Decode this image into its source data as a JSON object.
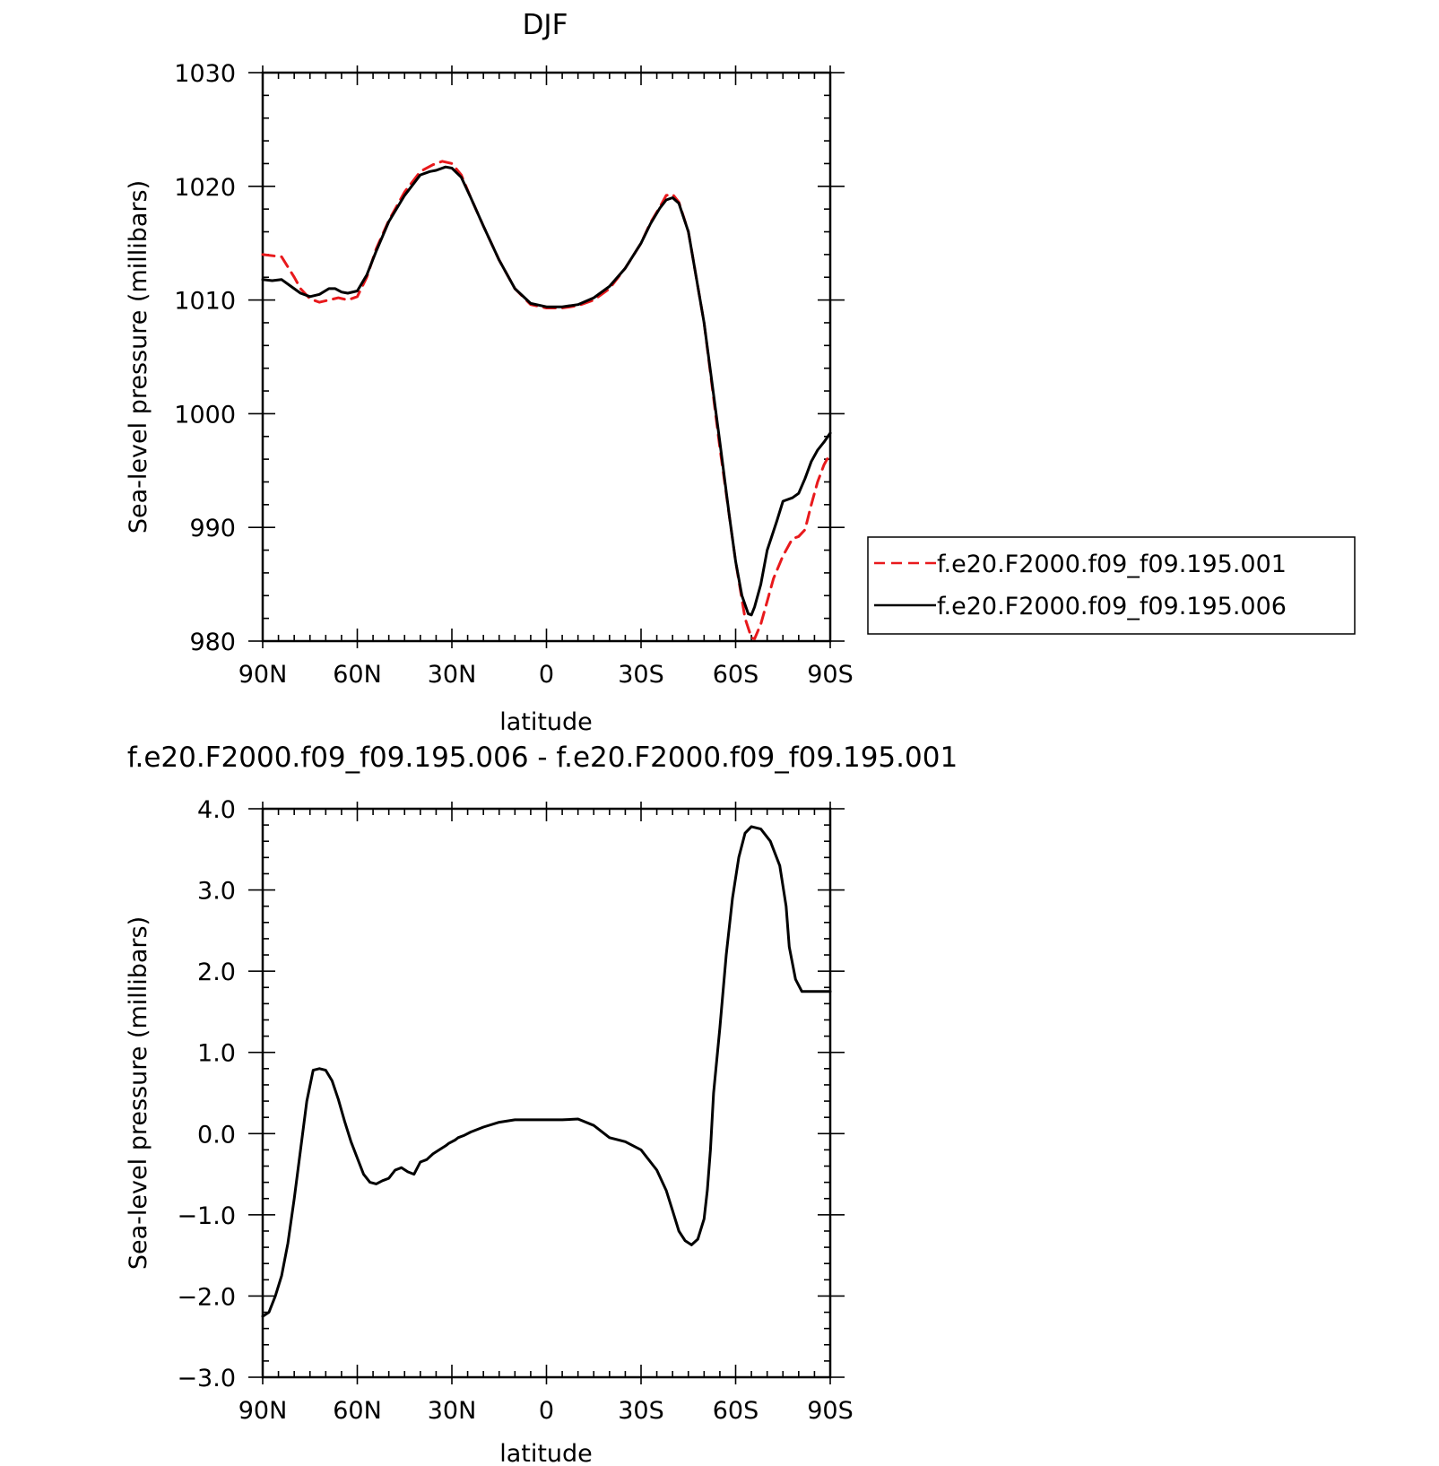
{
  "chart_data": [
    {
      "type": "line",
      "title": "DJF",
      "xlabel": "latitude",
      "ylabel": "Sea-level pressure (millibars)",
      "xlim": [
        90,
        -90
      ],
      "ylim": [
        980,
        1030
      ],
      "x_ticks": [
        {
          "value": 90,
          "label": "90N"
        },
        {
          "value": 60,
          "label": "60N"
        },
        {
          "value": 30,
          "label": "30N"
        },
        {
          "value": 0,
          "label": "0"
        },
        {
          "value": -30,
          "label": "30S"
        },
        {
          "value": -60,
          "label": "60S"
        },
        {
          "value": -90,
          "label": "90S"
        }
      ],
      "y_ticks": [
        {
          "value": 980,
          "label": "980"
        },
        {
          "value": 990,
          "label": "990"
        },
        {
          "value": 1000,
          "label": "1000"
        },
        {
          "value": 1010,
          "label": "1010"
        },
        {
          "value": 1020,
          "label": "1020"
        },
        {
          "value": 1030,
          "label": "1030"
        }
      ],
      "legend_position": "right",
      "series": [
        {
          "name": "f.e20.F2000.f09_f09.195.001",
          "color": "#e8191c",
          "dash": "dashed",
          "x": [
            90,
            84,
            80,
            78,
            75,
            72,
            69,
            66,
            63,
            60,
            57,
            54,
            50,
            45,
            40,
            36,
            33,
            30,
            27,
            24,
            20,
            15,
            10,
            5,
            0,
            -5,
            -10,
            -15,
            -20,
            -25,
            -30,
            -33,
            -36,
            -38,
            -40,
            -42,
            -45,
            -50,
            -55,
            -60,
            -63,
            -65,
            -66,
            -68,
            -70,
            -72,
            -75,
            -78,
            -80,
            -82,
            -84,
            -86,
            -88,
            -90
          ],
          "values": [
            1014.0,
            1013.8,
            1012.0,
            1011.0,
            1010.1,
            1009.8,
            1010.0,
            1010.2,
            1010.0,
            1010.3,
            1012.0,
            1014.5,
            1017.0,
            1019.5,
            1021.3,
            1021.9,
            1022.2,
            1022.0,
            1021.0,
            1019.0,
            1016.5,
            1013.5,
            1011.0,
            1009.6,
            1009.3,
            1009.3,
            1009.5,
            1010.0,
            1011.0,
            1012.8,
            1015.0,
            1016.8,
            1018.2,
            1019.2,
            1019.3,
            1018.6,
            1016.0,
            1008.0,
            997.0,
            987.0,
            982.0,
            980.3,
            980.2,
            981.5,
            983.5,
            985.5,
            987.5,
            989.0,
            989.2,
            989.8,
            992.0,
            994.0,
            995.5,
            996.5
          ]
        },
        {
          "name": "f.e20.F2000.f09_f09.195.006",
          "color": "#000000",
          "dash": "solid",
          "x": [
            90,
            87,
            84,
            81,
            78,
            75,
            72,
            69,
            67,
            65,
            63,
            60,
            57,
            54,
            50,
            45,
            40,
            37,
            35,
            32,
            30,
            27,
            24,
            20,
            15,
            10,
            5,
            0,
            -5,
            -10,
            -15,
            -20,
            -25,
            -30,
            -33,
            -36,
            -38,
            -40,
            -42,
            -45,
            -50,
            -55,
            -58,
            -60,
            -62,
            -64,
            -65,
            -66,
            -68,
            -70,
            -73,
            -75,
            -78,
            -80,
            -82,
            -84,
            -86,
            -88,
            -90
          ],
          "values": [
            1011.8,
            1011.7,
            1011.8,
            1011.2,
            1010.6,
            1010.3,
            1010.5,
            1011.0,
            1011.0,
            1010.7,
            1010.6,
            1010.8,
            1012.2,
            1014.3,
            1016.9,
            1019.2,
            1021.0,
            1021.3,
            1021.4,
            1021.7,
            1021.6,
            1020.8,
            1019.0,
            1016.5,
            1013.5,
            1011.0,
            1009.7,
            1009.4,
            1009.4,
            1009.6,
            1010.2,
            1011.2,
            1012.8,
            1015.0,
            1016.7,
            1018.1,
            1018.8,
            1019.0,
            1018.5,
            1016.0,
            1008.0,
            997.5,
            991.0,
            987.0,
            984.0,
            982.4,
            982.3,
            983.0,
            985.0,
            988.0,
            990.5,
            992.3,
            992.6,
            993.0,
            994.3,
            995.8,
            996.8,
            997.5,
            998.3
          ]
        }
      ]
    },
    {
      "type": "line",
      "title": "f.e20.F2000.f09_f09.195.006 - f.e20.F2000.f09_f09.195.001",
      "xlabel": "latitude",
      "ylabel": "Sea-level pressure (millibars)",
      "xlim": [
        90,
        -90
      ],
      "ylim": [
        -3.0,
        4.0
      ],
      "x_ticks": [
        {
          "value": 90,
          "label": "90N"
        },
        {
          "value": 60,
          "label": "60N"
        },
        {
          "value": 30,
          "label": "30N"
        },
        {
          "value": 0,
          "label": "0"
        },
        {
          "value": -30,
          "label": "30S"
        },
        {
          "value": -60,
          "label": "60S"
        },
        {
          "value": -90,
          "label": "90S"
        }
      ],
      "y_ticks": [
        {
          "value": -3.0,
          "label": "-3.0"
        },
        {
          "value": -2.0,
          "label": "-2.0"
        },
        {
          "value": -1.0,
          "label": "-1.0"
        },
        {
          "value": 0.0,
          "label": "0.0"
        },
        {
          "value": 1.0,
          "label": "1.0"
        },
        {
          "value": 2.0,
          "label": "2.0"
        },
        {
          "value": 3.0,
          "label": "3.0"
        },
        {
          "value": 4.0,
          "label": "4.0"
        }
      ],
      "series": [
        {
          "color": "#000000",
          "dash": "solid",
          "x": [
            90,
            88,
            86,
            84,
            82,
            80,
            78,
            76,
            74,
            72,
            70,
            68,
            66,
            64,
            62,
            60,
            58,
            56,
            54,
            52,
            50,
            48,
            46,
            44,
            42,
            40,
            38,
            36,
            34,
            32,
            31,
            29,
            28,
            26,
            24,
            20,
            15,
            10,
            5,
            0,
            -5,
            -10,
            -15,
            -20,
            -25,
            -30,
            -35,
            -38,
            -40,
            -42,
            -44,
            -46,
            -48,
            -50,
            -51,
            -52,
            -53,
            -55,
            -57,
            -59,
            -61,
            -63,
            -65,
            -68,
            -71,
            -74,
            -76,
            -77,
            -79,
            -81,
            -83,
            -85,
            -87,
            -89,
            -90
          ],
          "values": [
            -2.25,
            -2.2,
            -2.0,
            -1.75,
            -1.35,
            -0.8,
            -0.2,
            0.4,
            0.78,
            0.8,
            0.78,
            0.65,
            0.42,
            0.15,
            -0.1,
            -0.3,
            -0.5,
            -0.6,
            -0.62,
            -0.58,
            -0.55,
            -0.45,
            -0.42,
            -0.47,
            -0.5,
            -0.35,
            -0.32,
            -0.25,
            -0.2,
            -0.15,
            -0.12,
            -0.08,
            -0.05,
            -0.02,
            0.02,
            0.08,
            0.14,
            0.17,
            0.17,
            0.17,
            0.17,
            0.18,
            0.1,
            -0.05,
            -0.1,
            -0.2,
            -0.45,
            -0.7,
            -0.95,
            -1.2,
            -1.32,
            -1.37,
            -1.3,
            -1.05,
            -0.7,
            -0.2,
            0.5,
            1.3,
            2.2,
            2.9,
            3.4,
            3.7,
            3.78,
            3.75,
            3.6,
            3.3,
            2.8,
            2.3,
            1.9,
            1.75,
            1.75,
            1.75,
            1.75,
            1.75,
            1.75
          ]
        }
      ]
    }
  ]
}
